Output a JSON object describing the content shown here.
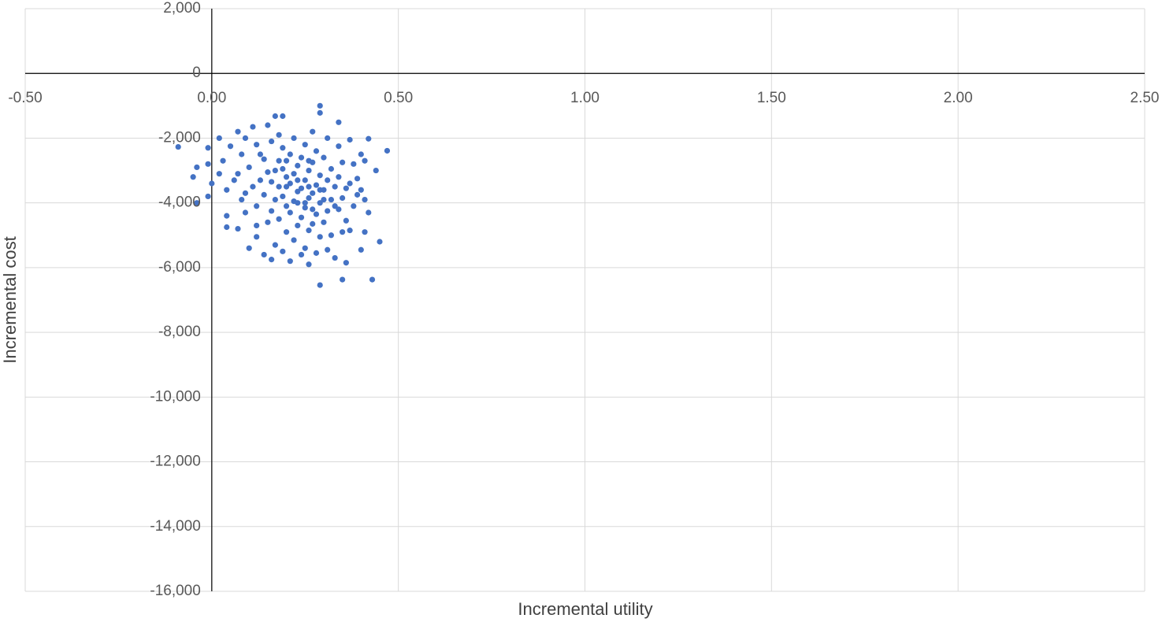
{
  "chart_data": {
    "type": "scatter",
    "x_label": "Incremental utility",
    "y_label": "Incremental cost",
    "xlim": [
      -0.5,
      2.5
    ],
    "ylim": [
      -16000,
      2000
    ],
    "xticks": [
      {
        "value": -0.5,
        "label": "-0.50"
      },
      {
        "value": 0,
        "label": "0.00"
      },
      {
        "value": 0.5,
        "label": "0.50"
      },
      {
        "value": 1,
        "label": "1.00"
      },
      {
        "value": 1.5,
        "label": "1.50"
      },
      {
        "value": 2,
        "label": "2.00"
      },
      {
        "value": 2.5,
        "label": "2.50"
      }
    ],
    "yticks": [
      {
        "value": 2000,
        "label": "2,000"
      },
      0,
      {
        "value": -2000,
        "label": "-2,000"
      },
      {
        "value": -4000,
        "label": "-4,000"
      },
      {
        "value": -6000,
        "label": "-6,000"
      },
      {
        "value": -8000,
        "label": "-8,000"
      },
      {
        "value": -10000,
        "label": "-10,000"
      },
      {
        "value": -12000,
        "label": "-12,000"
      },
      {
        "value": -14000,
        "label": "-14,000"
      },
      {
        "value": -16000,
        "label": "-16,000"
      }
    ],
    "grid": true,
    "color": "#4472c4",
    "x": [
      -0.09,
      -0.05,
      -0.04,
      -0.04,
      0.29,
      0.29,
      0.34,
      0.47,
      0.42,
      0.29,
      0.35,
      0.43,
      0.45,
      0.19,
      0.17,
      -0.01,
      -0.01,
      0.0,
      -0.01,
      0.02,
      0.03,
      0.04,
      0.04,
      0.04,
      0.07,
      0.08,
      0.07,
      0.08,
      0.07,
      0.1,
      0.11,
      0.12,
      0.1,
      0.11,
      0.12,
      0.12,
      0.12,
      0.14,
      0.16,
      0.15,
      0.16,
      0.14,
      0.15,
      0.16,
      0.14,
      0.16,
      0.15,
      0.17,
      0.18,
      0.19,
      0.18,
      0.19,
      0.2,
      0.18,
      0.19,
      0.2,
      0.18,
      0.2,
      0.19,
      0.21,
      0.22,
      0.21,
      0.23,
      0.22,
      0.21,
      0.23,
      0.22,
      0.21,
      0.23,
      0.22,
      0.24,
      0.25,
      0.24,
      0.26,
      0.25,
      0.24,
      0.26,
      0.25,
      0.24,
      0.26,
      0.25,
      0.26,
      0.27,
      0.28,
      0.27,
      0.29,
      0.28,
      0.27,
      0.29,
      0.28,
      0.27,
      0.29,
      0.28,
      0.31,
      0.3,
      0.32,
      0.31,
      0.3,
      0.32,
      0.31,
      0.3,
      0.32,
      0.31,
      0.33,
      0.34,
      0.35,
      0.34,
      0.36,
      0.35,
      0.34,
      0.36,
      0.35,
      0.36,
      0.37,
      0.38,
      0.37,
      0.39,
      0.38,
      0.37,
      0.4,
      0.4,
      0.41,
      0.4,
      0.41,
      0.42,
      0.41,
      0.44,
      0.39,
      0.02,
      0.05,
      0.06,
      0.09,
      0.09,
      0.09,
      0.13,
      0.13,
      0.17,
      0.17,
      0.2,
      0.2,
      0.23,
      0.23,
      0.26,
      0.26,
      0.27,
      0.29,
      0.3,
      0.33,
      0.33,
      0.25
    ],
    "y": [
      -2270,
      -3200,
      -2900,
      -4000,
      -1000,
      -1220,
      -1510,
      -2390,
      -2020,
      -6540,
      -6370,
      -6370,
      -5200,
      -1320,
      -1320,
      -2300,
      -2800,
      -3400,
      -3800,
      -2000,
      -2700,
      -3600,
      -4400,
      -4750,
      -1800,
      -2500,
      -3100,
      -3900,
      -4800,
      -5400,
      -1650,
      -2200,
      -2900,
      -3500,
      -4100,
      -4700,
      -5050,
      -5600,
      -5750,
      -1600,
      -2100,
      -2650,
      -3050,
      -3350,
      -3750,
      -4250,
      -4600,
      -5300,
      -1900,
      -2300,
      -2700,
      -2950,
      -3200,
      -3500,
      -3800,
      -4100,
      -4500,
      -4900,
      -5500,
      -5800,
      -2000,
      -2500,
      -2850,
      -3100,
      -3400,
      -3650,
      -3950,
      -4300,
      -4700,
      -5150,
      -5600,
      -2200,
      -2600,
      -3000,
      -3300,
      -3550,
      -3850,
      -4150,
      -4450,
      -4850,
      -5400,
      -5900,
      -1800,
      -2400,
      -2750,
      -3150,
      -3450,
      -3700,
      -4000,
      -4350,
      -4650,
      -5050,
      -5550,
      -2000,
      -2600,
      -2950,
      -3300,
      -3600,
      -3900,
      -4250,
      -4600,
      -5000,
      -5450,
      -5700,
      -2250,
      -2750,
      -3200,
      -3550,
      -3850,
      -4200,
      -4550,
      -4900,
      -5850,
      -2050,
      -2800,
      -3400,
      -3750,
      -4100,
      -4850,
      -5450,
      -2500,
      -2700,
      -3600,
      -3900,
      -4300,
      -4900,
      -3000,
      -3250,
      -3100,
      -2250,
      -3300,
      -2000,
      -3700,
      -4300,
      -3300,
      -2500,
      -3000,
      -3900,
      -2700,
      -3500,
      -3300,
      -4000,
      -3500,
      -2700,
      -4200,
      -3600,
      -3900,
      -3500,
      -4100,
      -4000
    ]
  }
}
